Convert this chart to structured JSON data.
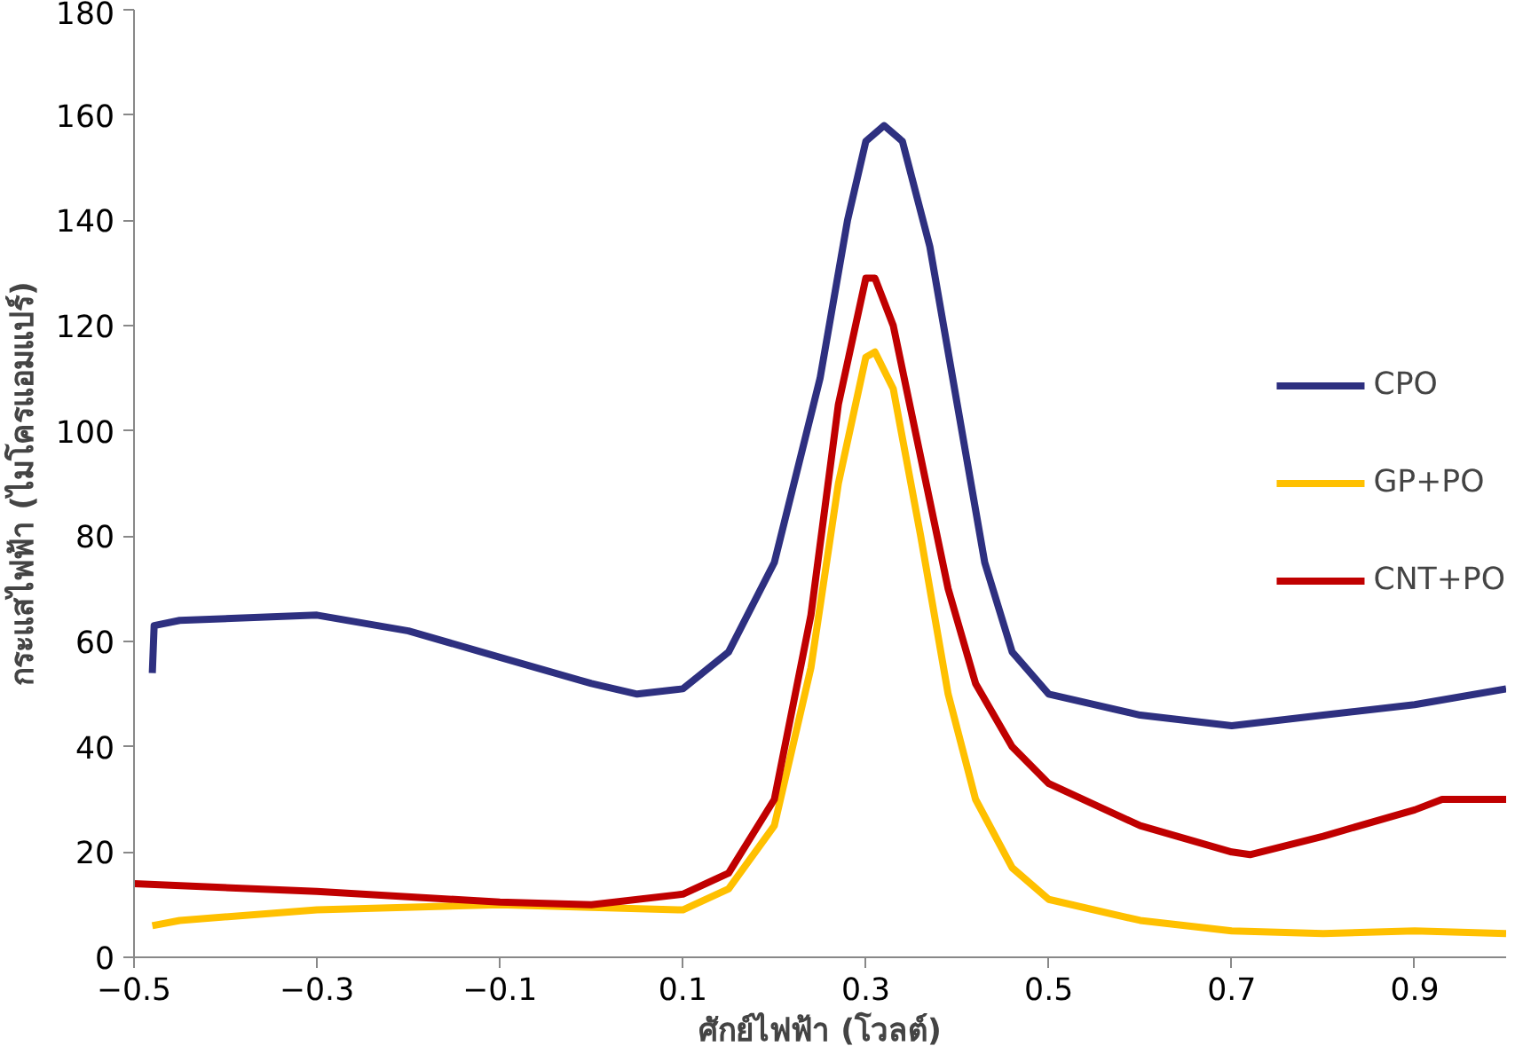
{
  "chart_data": {
    "type": "line",
    "xlabel": "ศักย์ไฟฟ้า (โวลต์)",
    "ylabel": "กระแสไฟฟ้า (ไมโครแอมแปร์)",
    "xlim": [
      -0.5,
      1.0
    ],
    "xticks": [
      -0.5,
      -0.3,
      -0.1,
      0.1,
      0.3,
      0.5,
      0.7,
      0.9
    ],
    "ylim": [
      0,
      180
    ],
    "yticks": [
      0,
      20,
      40,
      60,
      80,
      100,
      120,
      140,
      160,
      180
    ],
    "grid": false,
    "legend": "right",
    "marker": "none",
    "line_style": "solid",
    "series": [
      {
        "name": "CPO",
        "color": "#2e3080",
        "x": [
          -0.48,
          -0.478,
          -0.45,
          -0.3,
          -0.2,
          -0.1,
          0.0,
          0.05,
          0.1,
          0.15,
          0.2,
          0.25,
          0.28,
          0.3,
          0.32,
          0.34,
          0.37,
          0.4,
          0.43,
          0.46,
          0.5,
          0.6,
          0.7,
          0.8,
          0.9,
          1.0
        ],
        "values": [
          54,
          63,
          64,
          65,
          62,
          57,
          52,
          50,
          51,
          58,
          75,
          110,
          140,
          155,
          158,
          155,
          135,
          105,
          75,
          58,
          50,
          46,
          44,
          46,
          48,
          51
        ]
      },
      {
        "name": "GP+PO",
        "color": "#ffc000",
        "x": [
          -0.48,
          -0.45,
          -0.3,
          -0.1,
          0.0,
          0.1,
          0.15,
          0.2,
          0.24,
          0.27,
          0.3,
          0.31,
          0.33,
          0.36,
          0.39,
          0.42,
          0.46,
          0.5,
          0.6,
          0.7,
          0.8,
          0.9,
          1.0
        ],
        "values": [
          6,
          7,
          9,
          10,
          9.5,
          9,
          13,
          25,
          55,
          90,
          114,
          115,
          108,
          80,
          50,
          30,
          17,
          11,
          7,
          5,
          4.5,
          5,
          4.5
        ]
      },
      {
        "name": "CNT+PO",
        "color": "#c00000",
        "x": [
          -0.5,
          -0.3,
          -0.1,
          0.0,
          0.1,
          0.15,
          0.2,
          0.24,
          0.27,
          0.3,
          0.31,
          0.33,
          0.36,
          0.39,
          0.42,
          0.46,
          0.5,
          0.6,
          0.7,
          0.72,
          0.8,
          0.9,
          0.93,
          1.0
        ],
        "values": [
          14,
          12.5,
          10.5,
          10,
          12,
          16,
          30,
          65,
          105,
          129,
          129,
          120,
          95,
          70,
          52,
          40,
          33,
          25,
          20,
          19.5,
          23,
          28,
          30,
          30
        ]
      }
    ]
  }
}
